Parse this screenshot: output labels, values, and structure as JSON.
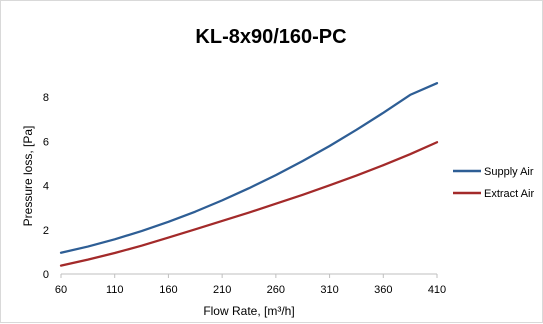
{
  "chart_data": {
    "type": "line",
    "title": "KL-8x90/160-PC",
    "xlabel": "Flow Rate, [m³/h]",
    "ylabel": "Pressure loss, [Pa]",
    "x_ticks": [
      60,
      110,
      160,
      210,
      260,
      310,
      360,
      410
    ],
    "y_ticks": [
      0,
      2,
      4,
      6,
      8
    ],
    "xlim": [
      60,
      410
    ],
    "ylim": [
      0,
      9
    ],
    "grid": false,
    "legend_position": "right",
    "x": [
      60,
      85,
      110,
      135,
      160,
      185,
      210,
      235,
      260,
      285,
      310,
      335,
      360,
      385,
      410
    ],
    "series": [
      {
        "name": "Supply Air",
        "color": "#2e5e95",
        "values": [
          0.96,
          1.24,
          1.57,
          1.94,
          2.36,
          2.82,
          3.33,
          3.88,
          4.47,
          5.11,
          5.79,
          6.52,
          7.29,
          8.1,
          8.63
        ]
      },
      {
        "name": "Extract Air",
        "color": "#a32a2a",
        "values": [
          0.38,
          0.65,
          0.95,
          1.28,
          1.65,
          2.02,
          2.4,
          2.78,
          3.18,
          3.58,
          4.01,
          4.45,
          4.92,
          5.42,
          5.96
        ]
      }
    ]
  }
}
